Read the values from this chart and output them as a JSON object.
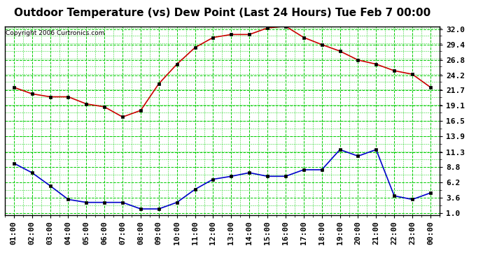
{
  "title": "Outdoor Temperature (vs) Dew Point (Last 24 Hours) Tue Feb 7 00:00",
  "copyright": "Copyright 2006 Curtronics.com",
  "x_labels": [
    "01:00",
    "02:00",
    "03:00",
    "04:00",
    "05:00",
    "06:00",
    "07:00",
    "08:00",
    "09:00",
    "10:00",
    "11:00",
    "12:00",
    "13:00",
    "14:00",
    "15:00",
    "16:00",
    "17:00",
    "18:00",
    "19:00",
    "20:00",
    "21:00",
    "22:00",
    "23:00",
    "00:00"
  ],
  "temp_red": [
    22.2,
    21.1,
    20.6,
    20.6,
    19.4,
    18.9,
    17.2,
    18.3,
    22.8,
    26.1,
    28.9,
    30.6,
    31.1,
    31.1,
    32.2,
    32.5,
    30.6,
    29.4,
    28.3,
    26.8,
    26.1,
    25.0,
    24.4,
    22.2
  ],
  "dew_blue": [
    9.4,
    7.8,
    5.6,
    3.3,
    2.8,
    2.8,
    2.8,
    1.7,
    1.7,
    2.8,
    5.0,
    6.7,
    7.2,
    7.8,
    7.2,
    7.2,
    8.3,
    8.3,
    11.7,
    10.6,
    11.7,
    3.9,
    3.3,
    4.4
  ],
  "y_ticks": [
    1.0,
    3.6,
    6.2,
    8.8,
    11.3,
    13.9,
    16.5,
    19.1,
    21.7,
    24.2,
    26.8,
    29.4,
    32.0
  ],
  "y_min": 1.0,
  "y_max": 32.0,
  "bg_color": "#ffffff",
  "grid_color": "#00cc00",
  "line_red_color": "#cc0000",
  "line_blue_color": "#0000cc",
  "marker_color": "#000000",
  "title_fontsize": 11,
  "axis_fontsize": 8
}
